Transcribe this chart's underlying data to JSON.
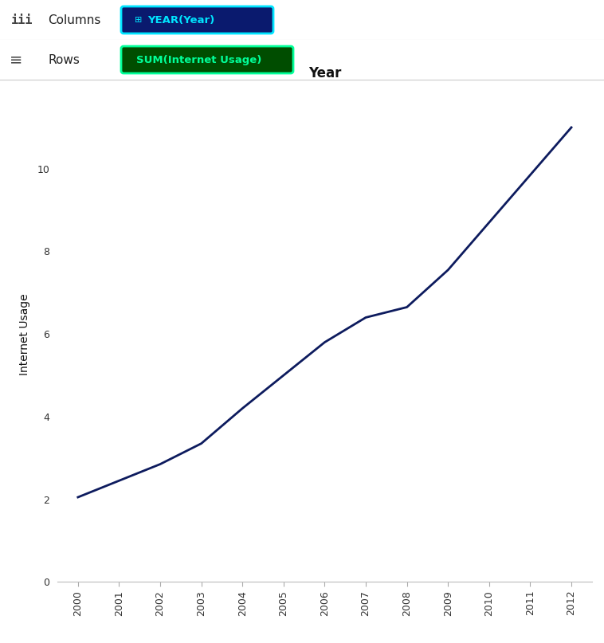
{
  "years": [
    2000,
    2001,
    2002,
    2003,
    2004,
    2005,
    2006,
    2007,
    2008,
    2009,
    2010,
    2011,
    2012
  ],
  "internet_usage": [
    2.05,
    2.45,
    2.85,
    3.35,
    4.2,
    5.0,
    5.8,
    6.4,
    6.65,
    7.55,
    8.7,
    9.85,
    11.0
  ],
  "line_color": "#0d1b5e",
  "line_width": 2.0,
  "title": "Year",
  "ylabel": "Internet Usage",
  "ylim": [
    0,
    12
  ],
  "yticks": [
    0,
    2,
    4,
    6,
    8,
    10
  ],
  "bg_color": "#ffffff",
  "col_pill_bg": "#0a1a6e",
  "col_pill_border": "#00e5ff",
  "col_pill_text": "#00e5ff",
  "col_pill_label": "YEAR(Year)",
  "col_pill_icon": "⊞",
  "row_pill_bg": "#004d00",
  "row_pill_border": "#00ff99",
  "row_pill_text": "#00ff99",
  "row_pill_label": "SUM(Internet Usage)",
  "columns_label": "Columns",
  "rows_label": "Rows"
}
